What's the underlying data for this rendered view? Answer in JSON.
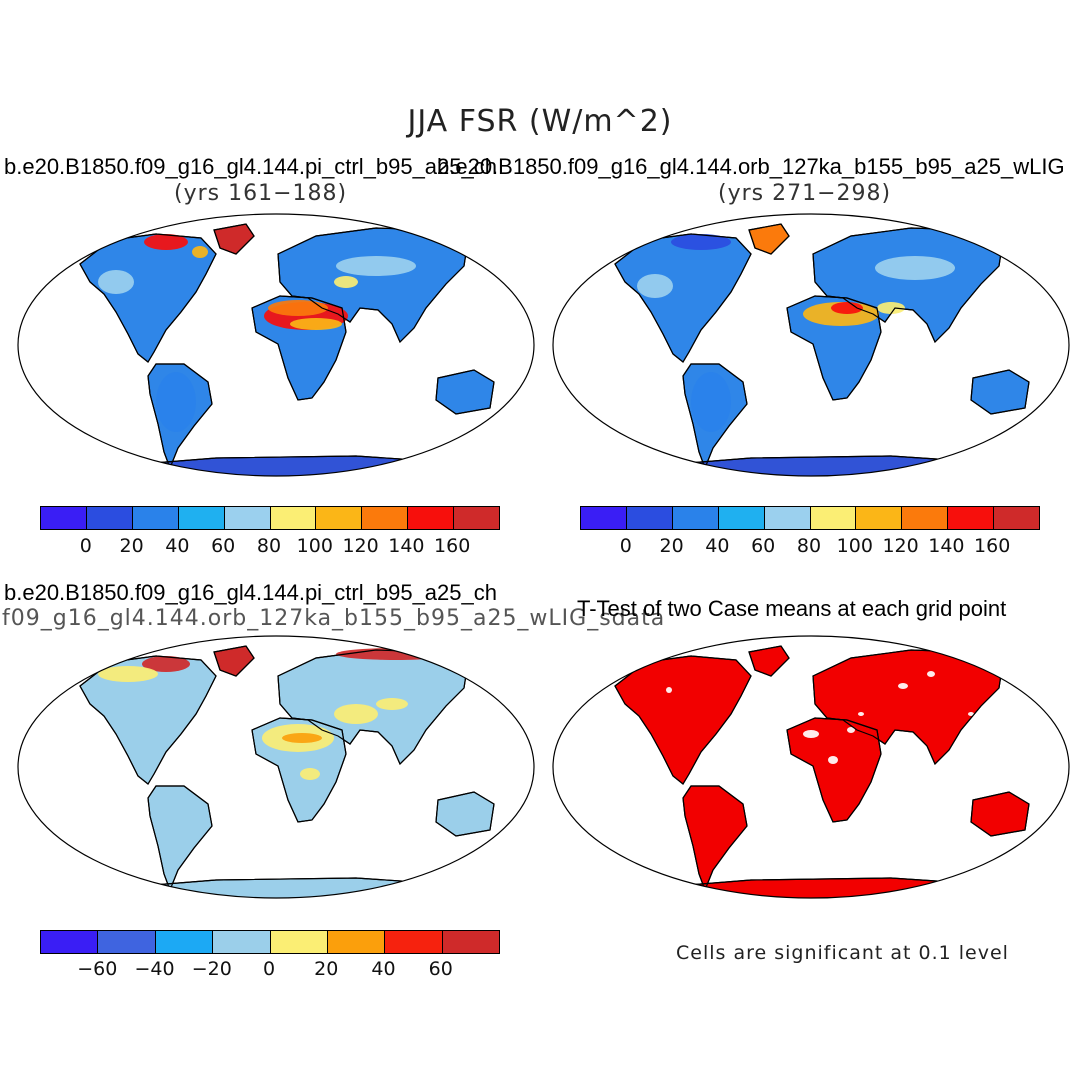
{
  "figure": {
    "title": "JJA FSR (W/m^2)"
  },
  "panels": [
    {
      "title": "b.e20.B1850.f09_g16_gl4.144.pi_ctrl_b95_a25_ch",
      "subtitle": "(yrs 161−188)"
    },
    {
      "title": "b.e20.B1850.f09_g16_gl4.144.orb_127ka_b155_b95_a25_wLIG",
      "subtitle": "(yrs 271−298)"
    },
    {
      "title": "b.e20.B1850.f09_g16_gl4.144.pi_ctrl_b95_a25_ch",
      "subtitle": "f09_g16_gl4.144.orb_127ka_b155_b95_a25_wLIG_sdata"
    },
    {
      "title": "T-Test of two Case means at each grid point",
      "note": "Cells are significant at 0.1 level"
    }
  ],
  "colorbars": {
    "abs": {
      "colors": [
        "#3a1ef5",
        "#2b4de0",
        "#2a82ea",
        "#1fb0f0",
        "#9bd0ee",
        "#fbee74",
        "#fbb617",
        "#fb7a0c",
        "#f70f0c",
        "#cf2a2a"
      ],
      "labels": [
        "0",
        "20",
        "40",
        "60",
        "80",
        "100",
        "120",
        "140",
        "160"
      ]
    },
    "diff": {
      "colors": [
        "#3a1ef5",
        "#3f64e0",
        "#1ca9f4",
        "#9bcfea",
        "#fbee74",
        "#fb9f0c",
        "#f6220e",
        "#cf2a2a"
      ],
      "labels": [
        "−60",
        "−40",
        "−20",
        "0",
        "20",
        "40",
        "60"
      ]
    }
  },
  "colors": {
    "significant": "#f20000",
    "land_base_abs": "#2f86e8",
    "land_base_diff": "#9bcfea",
    "antarctic_abs": "#3153d6",
    "outline": "#000000"
  }
}
